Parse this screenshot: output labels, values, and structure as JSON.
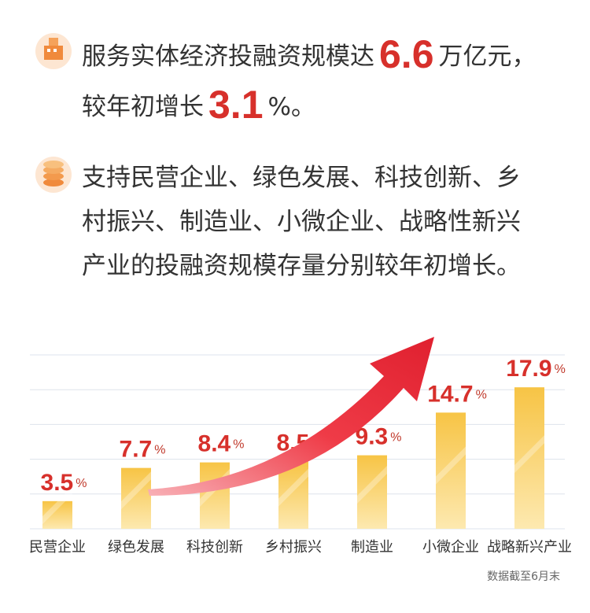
{
  "header": {
    "line1": {
      "text": "服务实体经济投融资规模达",
      "number": 6.6,
      "unit": "万亿元，"
    },
    "line2": {
      "text": "较年初增长",
      "number": 3.1,
      "unit": "%。"
    }
  },
  "paragraph": "支持民营企业、绿色发展、科技创新、乡村振兴、制造业、小微企业、战略性新兴产业的投融资规模存量分别较年初增长。",
  "chart_data": {
    "type": "bar",
    "categories": [
      "民营企业",
      "绿色发展",
      "科技创新",
      "乡村振兴",
      "制造业",
      "小微企业",
      "战略新兴产业"
    ],
    "values": [
      3.5,
      7.7,
      8.4,
      8.5,
      9.3,
      14.7,
      17.9
    ],
    "value_unit": "%",
    "color": "#f7c445",
    "ylim": [
      0,
      22
    ],
    "yticks": [
      4.4,
      8.8,
      13.2,
      17.6,
      22
    ],
    "grid": true
  },
  "footnote": "数据截至6月末"
}
